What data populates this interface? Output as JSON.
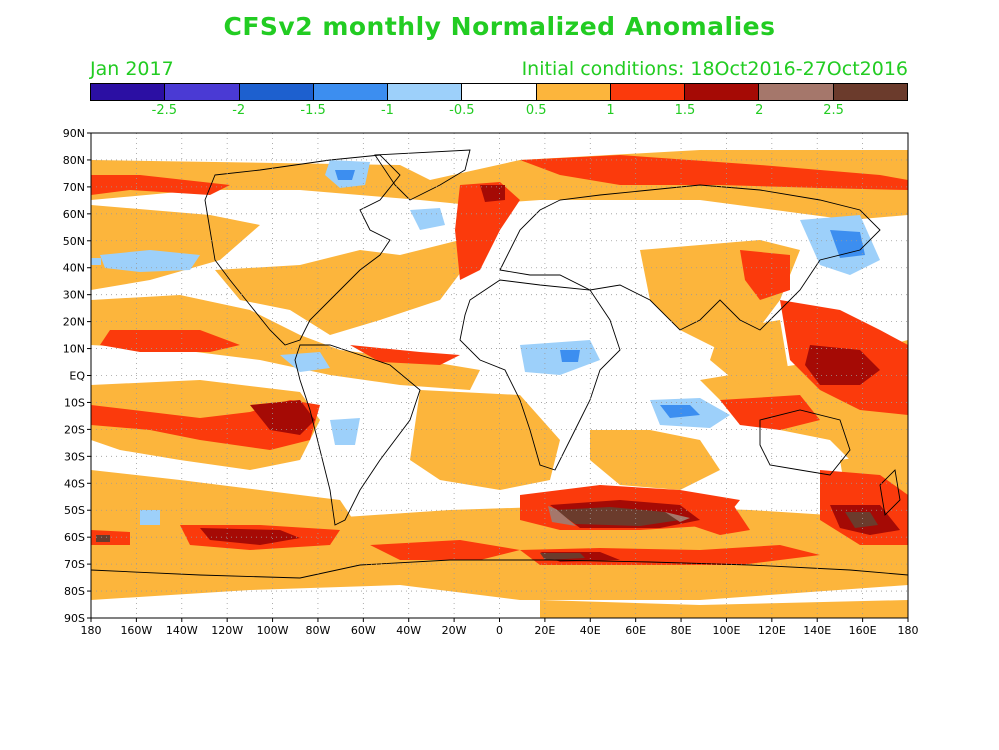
{
  "title": "CFSv2 monthly Normalized Anomalies",
  "month_label": "Jan 2017",
  "init_label": "Initial conditions: 18Oct2016-27Oct2016",
  "colorbar": {
    "colors": [
      "#2b0fa3",
      "#4a3ad4",
      "#1d60cf",
      "#3c8ef0",
      "#9dd0fa",
      "#ffffff",
      "#fcb53c",
      "#fb3a0c",
      "#a50a05",
      "#a5776b",
      "#6b3b2c"
    ],
    "labels": [
      "-2.5",
      "-2",
      "-1.5",
      "-1",
      "-0.5",
      "0.5",
      "1",
      "1.5",
      "2",
      "2.5"
    ]
  },
  "lat_labels": [
    "90N",
    "80N",
    "70N",
    "60N",
    "50N",
    "40N",
    "30N",
    "20N",
    "10N",
    "EQ",
    "10S",
    "20S",
    "30S",
    "40S",
    "50S",
    "60S",
    "70S",
    "80S",
    "90S"
  ],
  "lon_labels": [
    "180",
    "160W",
    "140W",
    "120W",
    "100W",
    "80W",
    "60W",
    "40W",
    "20W",
    "0",
    "20E",
    "40E",
    "60E",
    "80E",
    "100E",
    "120E",
    "140E",
    "160E",
    "180"
  ]
}
